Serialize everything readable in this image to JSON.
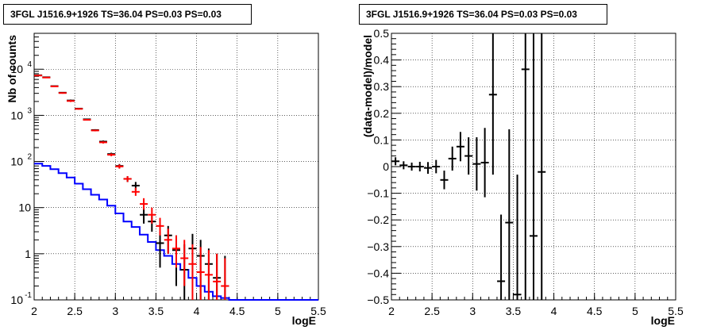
{
  "chart_data": [
    {
      "type": "histogram",
      "title": "3FGL J1516.9+1926 TS=36.04 PS=0.03 PS=0.03",
      "xlabel": "logE",
      "ylabel": "Nb of counts",
      "xlim": [
        2,
        5.5
      ],
      "ylim": [
        0.1,
        60000
      ],
      "yscale": "log",
      "grid": true,
      "x_ticks": [
        "2",
        "2.5",
        "3",
        "3.5",
        "4",
        "4.5",
        "5",
        "5.5"
      ],
      "y_ticks": [
        "10^{-1}",
        "1",
        "10",
        "10^{2}",
        "10^{3}",
        "10^{4}"
      ],
      "model_step": {
        "color": "#0000ff",
        "edges": [
          2.0,
          2.1,
          2.2,
          2.3,
          2.4,
          2.5,
          2.6,
          2.7,
          2.8,
          2.9,
          3.0,
          3.1,
          3.2,
          3.3,
          3.4,
          3.5,
          3.6,
          3.7,
          3.8,
          3.9,
          4.0,
          4.1,
          4.2,
          4.3,
          4.4,
          4.5,
          5.5
        ],
        "values": [
          90,
          80,
          68,
          56,
          45,
          33,
          25,
          19,
          15,
          11,
          7.5,
          5,
          3.8,
          2.6,
          1.8,
          1.2,
          0.9,
          0.6,
          0.45,
          0.3,
          0.2,
          0.15,
          0.12,
          0.11,
          0.1,
          0.1
        ]
      },
      "data_black": {
        "color": "#000000",
        "points": [
          {
            "x": 2.05,
            "y": 7400,
            "lo": 7300,
            "hi": 7500
          },
          {
            "x": 2.15,
            "y": 6700,
            "lo": 6600,
            "hi": 6800
          },
          {
            "x": 2.25,
            "y": 4300,
            "lo": 4200,
            "hi": 4400
          },
          {
            "x": 2.35,
            "y": 3100,
            "lo": 3000,
            "hi": 3200
          },
          {
            "x": 2.45,
            "y": 2100,
            "lo": 2000,
            "hi": 2200
          },
          {
            "x": 2.55,
            "y": 1400,
            "lo": 1350,
            "hi": 1450
          },
          {
            "x": 2.65,
            "y": 820,
            "lo": 790,
            "hi": 850
          },
          {
            "x": 2.75,
            "y": 480,
            "lo": 460,
            "hi": 500
          },
          {
            "x": 2.85,
            "y": 270,
            "lo": 255,
            "hi": 285
          },
          {
            "x": 2.95,
            "y": 145,
            "lo": 135,
            "hi": 155
          },
          {
            "x": 3.05,
            "y": 80,
            "lo": 72,
            "hi": 88
          },
          {
            "x": 3.15,
            "y": 42,
            "lo": 36,
            "hi": 48
          },
          {
            "x": 3.25,
            "y": 30,
            "lo": 24,
            "hi": 36
          },
          {
            "x": 3.35,
            "y": 7,
            "lo": 4.5,
            "hi": 10
          },
          {
            "x": 3.45,
            "y": 5,
            "lo": 3,
            "hi": 7
          },
          {
            "x": 3.55,
            "y": 1.7,
            "lo": 0.5,
            "hi": 3
          },
          {
            "x": 3.65,
            "y": 2.5,
            "lo": 1,
            "hi": 4
          },
          {
            "x": 3.75,
            "y": 1.2,
            "lo": 0.2,
            "hi": 2.5
          },
          {
            "x": 3.85,
            "y": 0.45,
            "lo": 0.1,
            "hi": 1.6
          },
          {
            "x": 3.95,
            "y": 1.3,
            "lo": 0.3,
            "hi": 2.7
          },
          {
            "x": 4.05,
            "y": 0.9,
            "lo": 0.1,
            "hi": 2.0
          },
          {
            "x": 4.15,
            "y": 0.6,
            "lo": 0.1,
            "hi": 1.3
          },
          {
            "x": 4.25,
            "y": 0.3,
            "lo": 0.1,
            "hi": 1.0
          },
          {
            "x": 4.35,
            "y": 0.2,
            "lo": 0.1,
            "hi": 0.9
          }
        ]
      },
      "data_red": {
        "color": "#ff0000",
        "points": [
          {
            "x": 2.05,
            "y": 7300,
            "lo": 7200,
            "hi": 7400
          },
          {
            "x": 2.15,
            "y": 6600,
            "lo": 6500,
            "hi": 6700
          },
          {
            "x": 2.25,
            "y": 4250,
            "lo": 4150,
            "hi": 4350
          },
          {
            "x": 2.35,
            "y": 3050,
            "lo": 2950,
            "hi": 3150
          },
          {
            "x": 2.45,
            "y": 2050,
            "lo": 1950,
            "hi": 2150
          },
          {
            "x": 2.55,
            "y": 1380,
            "lo": 1330,
            "hi": 1430
          },
          {
            "x": 2.65,
            "y": 800,
            "lo": 770,
            "hi": 830
          },
          {
            "x": 2.75,
            "y": 470,
            "lo": 450,
            "hi": 490
          },
          {
            "x": 2.85,
            "y": 260,
            "lo": 245,
            "hi": 275
          },
          {
            "x": 2.95,
            "y": 140,
            "lo": 130,
            "hi": 150
          },
          {
            "x": 3.05,
            "y": 78,
            "lo": 70,
            "hi": 86
          },
          {
            "x": 3.15,
            "y": 42,
            "lo": 36,
            "hi": 48
          },
          {
            "x": 3.25,
            "y": 22,
            "lo": 18,
            "hi": 27
          },
          {
            "x": 3.35,
            "y": 12,
            "lo": 9,
            "hi": 16
          },
          {
            "x": 3.45,
            "y": 7,
            "lo": 4.5,
            "hi": 10
          },
          {
            "x": 3.55,
            "y": 4,
            "lo": 2.5,
            "hi": 6
          },
          {
            "x": 3.65,
            "y": 2,
            "lo": 1,
            "hi": 3.5
          },
          {
            "x": 3.75,
            "y": 1.3,
            "lo": 0.5,
            "hi": 2.5
          },
          {
            "x": 3.85,
            "y": 0.8,
            "lo": 0.2,
            "hi": 2.0
          },
          {
            "x": 3.95,
            "y": 0.6,
            "lo": 0.1,
            "hi": 1.6
          },
          {
            "x": 4.05,
            "y": 0.4,
            "lo": 0.1,
            "hi": 1.4
          },
          {
            "x": 4.15,
            "y": 0.35,
            "lo": 0.1,
            "hi": 1.2
          },
          {
            "x": 4.25,
            "y": 0.25,
            "lo": 0.1,
            "hi": 1.0
          },
          {
            "x": 4.35,
            "y": 0.2,
            "lo": 0.1,
            "hi": 0.8
          }
        ]
      }
    },
    {
      "type": "scatter",
      "title": "3FGL J1516.9+1926 TS=36.04 PS=0.03 PS=0.03",
      "xlabel": "logE",
      "ylabel": "(data-model)/model",
      "xlim": [
        2,
        5.5
      ],
      "ylim": [
        -0.5,
        0.5
      ],
      "grid": true,
      "x_ticks": [
        "2",
        "2.5",
        "3",
        "3.5",
        "4",
        "4.5",
        "5",
        "5.5"
      ],
      "y_ticks": [
        "-0.5",
        "-0.4",
        "-0.3",
        "-0.2",
        "-0.1",
        "0",
        "0.1",
        "0.2",
        "0.3",
        "0.4",
        "0.5"
      ],
      "color": "#000000",
      "points": [
        {
          "x": 2.05,
          "y": 0.02,
          "err": 0.015
        },
        {
          "x": 2.15,
          "y": 0.005,
          "err": 0.015
        },
        {
          "x": 2.25,
          "y": 0.0,
          "err": 0.015
        },
        {
          "x": 2.35,
          "y": 0.0,
          "err": 0.018
        },
        {
          "x": 2.45,
          "y": -0.005,
          "err": 0.022
        },
        {
          "x": 2.55,
          "y": 0.0,
          "err": 0.025
        },
        {
          "x": 2.65,
          "y": -0.05,
          "err": 0.035
        },
        {
          "x": 2.75,
          "y": 0.03,
          "err": 0.045
        },
        {
          "x": 2.85,
          "y": 0.075,
          "err": 0.055
        },
        {
          "x": 2.95,
          "y": 0.04,
          "err": 0.07
        },
        {
          "x": 3.05,
          "y": 0.01,
          "err": 0.1
        },
        {
          "x": 3.15,
          "y": 0.015,
          "err": 0.13
        },
        {
          "x": 3.25,
          "y": 0.27,
          "err": 0.3
        },
        {
          "x": 3.35,
          "y": -0.43,
          "err": 0.25
        },
        {
          "x": 3.45,
          "y": -0.21,
          "err": 0.35
        },
        {
          "x": 3.55,
          "y": -0.48,
          "err": 0.45
        },
        {
          "x": 3.65,
          "y": 0.365,
          "err": 0.9
        },
        {
          "x": 3.75,
          "y": -0.26,
          "err": 0.9
        },
        {
          "x": 3.85,
          "y": -0.02,
          "err": 1.2
        }
      ]
    }
  ]
}
